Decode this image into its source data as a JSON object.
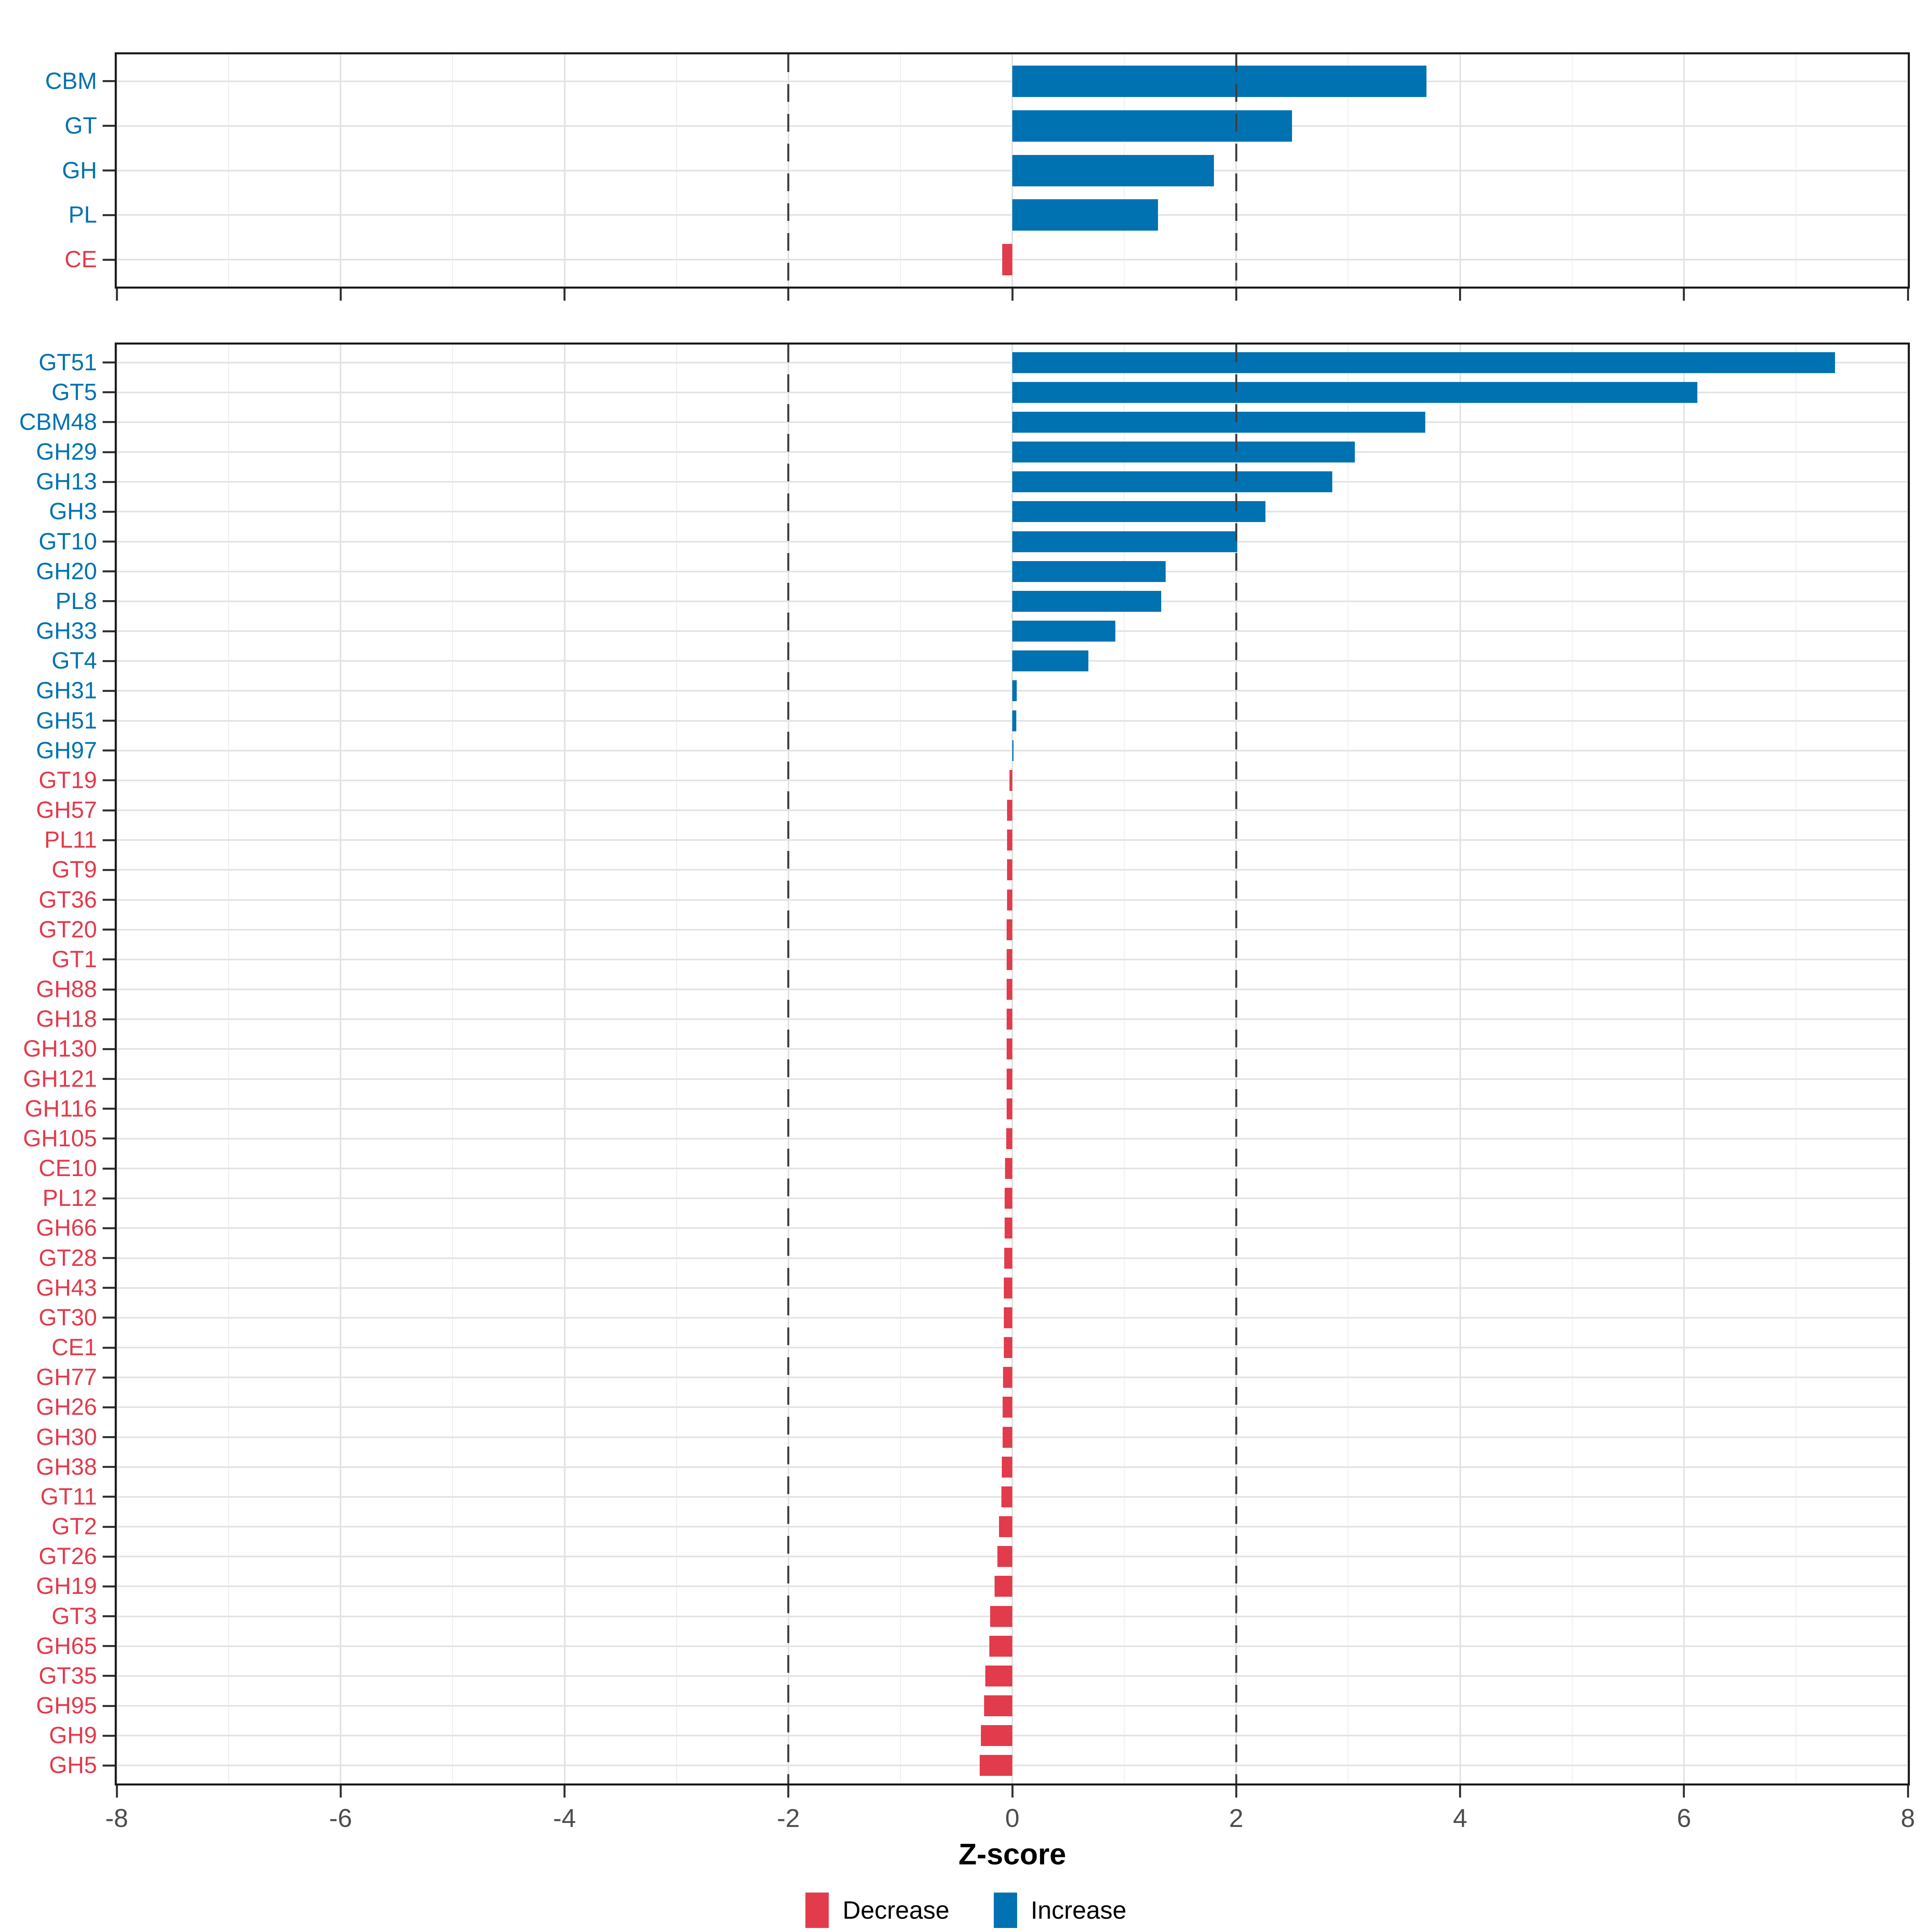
{
  "axis": {
    "title": "Z-score",
    "range": [
      -8,
      8
    ],
    "tick_values": [
      -8,
      -6,
      -4,
      -2,
      0,
      2,
      4,
      6,
      8
    ],
    "tick_labels": [
      "-8",
      "-6",
      "-4",
      "-2",
      "0",
      "2",
      "4",
      "6",
      "8"
    ],
    "guide_values": [
      -2,
      2
    ],
    "gridline_every": 1
  },
  "colors": {
    "increase": "#0072b2",
    "decrease": "#e23b4c",
    "guide": "#3f3f3f",
    "grid": "#e3e3e3",
    "tick_label": "#4d4d4d",
    "panel_border": "#1a1a1a"
  },
  "legend": {
    "items": [
      {
        "label": "Decrease",
        "color": "#e23b4c",
        "direction": "decrease"
      },
      {
        "label": "Increase",
        "color": "#0072b2",
        "direction": "increase"
      }
    ]
  },
  "chart_data": [
    {
      "type": "bar",
      "orientation": "horizontal",
      "panel": "cazyme-classes",
      "xlabel": "Z-score",
      "xlim": [
        -8,
        8
      ],
      "grid": true,
      "legend_position": "bottom",
      "categories": [
        "CBM",
        "GT",
        "GH",
        "PL",
        "CE"
      ],
      "values": [
        3.7,
        2.5,
        1.8,
        1.3,
        -0.09
      ],
      "directions": [
        "increase",
        "increase",
        "increase",
        "increase",
        "decrease"
      ]
    },
    {
      "type": "bar",
      "orientation": "horizontal",
      "panel": "cazyme-families",
      "xlabel": "Z-score",
      "xlim": [
        -8,
        8
      ],
      "grid": true,
      "legend_position": "bottom",
      "categories": [
        "GT51",
        "GT5",
        "CBM48",
        "GH29",
        "GH13",
        "GH3",
        "GT10",
        "GH20",
        "PL8",
        "GH33",
        "GT4",
        "GH31",
        "GH51",
        "GH97",
        "GT19",
        "GH57",
        "PL11",
        "GT9",
        "GT36",
        "GT20",
        "GT1",
        "GH88",
        "GH18",
        "GH130",
        "GH121",
        "GH116",
        "GH105",
        "CE10",
        "PL12",
        "GH66",
        "GT28",
        "GH43",
        "GT30",
        "CE1",
        "GH77",
        "GH26",
        "GH30",
        "GH38",
        "GT11",
        "GT2",
        "GT26",
        "GH19",
        "GT3",
        "GH65",
        "GT35",
        "GH95",
        "GH9",
        "GH5"
      ],
      "values": [
        7.35,
        6.12,
        3.69,
        3.06,
        2.86,
        2.26,
        2.01,
        1.37,
        1.33,
        0.92,
        0.68,
        0.04,
        0.035,
        0.012,
        -0.025,
        -0.045,
        -0.045,
        -0.046,
        -0.048,
        -0.05,
        -0.05,
        -0.05,
        -0.05,
        -0.05,
        -0.051,
        -0.052,
        -0.053,
        -0.063,
        -0.067,
        -0.068,
        -0.072,
        -0.075,
        -0.076,
        -0.077,
        -0.083,
        -0.085,
        -0.087,
        -0.093,
        -0.098,
        -0.12,
        -0.132,
        -0.16,
        -0.199,
        -0.205,
        -0.24,
        -0.253,
        -0.28,
        -0.29
      ],
      "directions": [
        "increase",
        "increase",
        "increase",
        "increase",
        "increase",
        "increase",
        "increase",
        "increase",
        "increase",
        "increase",
        "increase",
        "increase",
        "increase",
        "increase",
        "decrease",
        "decrease",
        "decrease",
        "decrease",
        "decrease",
        "decrease",
        "decrease",
        "decrease",
        "decrease",
        "decrease",
        "decrease",
        "decrease",
        "decrease",
        "decrease",
        "decrease",
        "decrease",
        "decrease",
        "decrease",
        "decrease",
        "decrease",
        "decrease",
        "decrease",
        "decrease",
        "decrease",
        "decrease",
        "decrease",
        "decrease",
        "decrease",
        "decrease",
        "decrease",
        "decrease",
        "decrease",
        "decrease",
        "decrease"
      ]
    }
  ]
}
